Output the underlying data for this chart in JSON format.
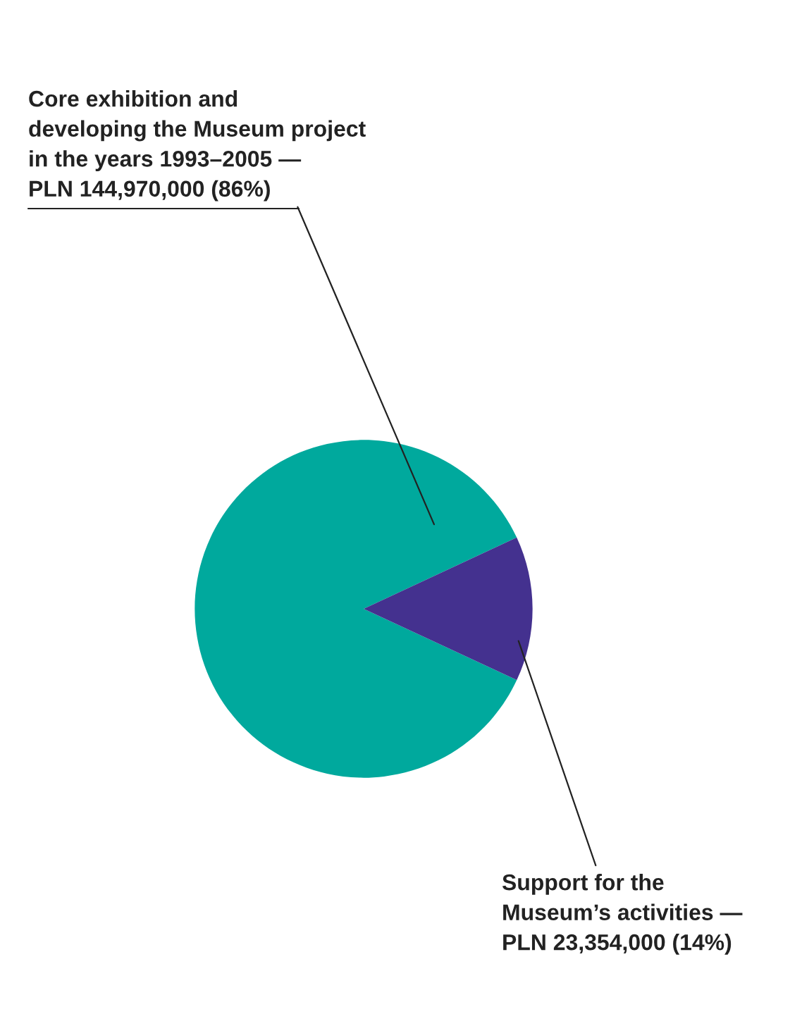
{
  "chart_data": {
    "type": "pie",
    "categories": [
      "Core exhibition and\ndeveloping the Museum project\nin the years 1993–2005 —\nPLN 144,970,000 (86%)",
      "Support for the\nMuseum’s activities —\nPLN 23,354,000 (14%)"
    ],
    "values": [
      144970000,
      23354000
    ],
    "colors": [
      "#00a99d",
      "#44318f"
    ]
  }
}
